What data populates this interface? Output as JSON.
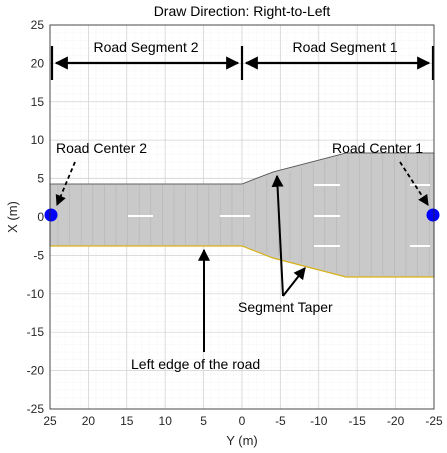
{
  "title": "Draw Direction: Right-to-Left",
  "axes": {
    "xlabel": "Y (m)",
    "ylabel": "X (m)",
    "xlim": [
      25,
      -25
    ],
    "ylim": [
      -25,
      25
    ],
    "x_ticks": [
      "25",
      "20",
      "15",
      "10",
      "5",
      "0",
      "-5",
      "-10",
      "-15",
      "-20",
      "-25"
    ],
    "y_ticks": [
      "25",
      "20",
      "15",
      "10",
      "5",
      "0",
      "-5",
      "-10",
      "-15",
      "-20",
      "-25"
    ],
    "grid": "minor"
  },
  "annotations": {
    "segment2": "Road Segment 2",
    "segment1": "Road Segment 1",
    "center2": "Road Center 2",
    "center1": "Road Center 1",
    "taper": "Segment Taper",
    "left_edge": "Left edge of the road"
  },
  "colors": {
    "road": "#c9c9c9",
    "lane_marking": "#ffffff",
    "left_edge": "#d7b21a",
    "center_point": "#0000ff"
  }
}
